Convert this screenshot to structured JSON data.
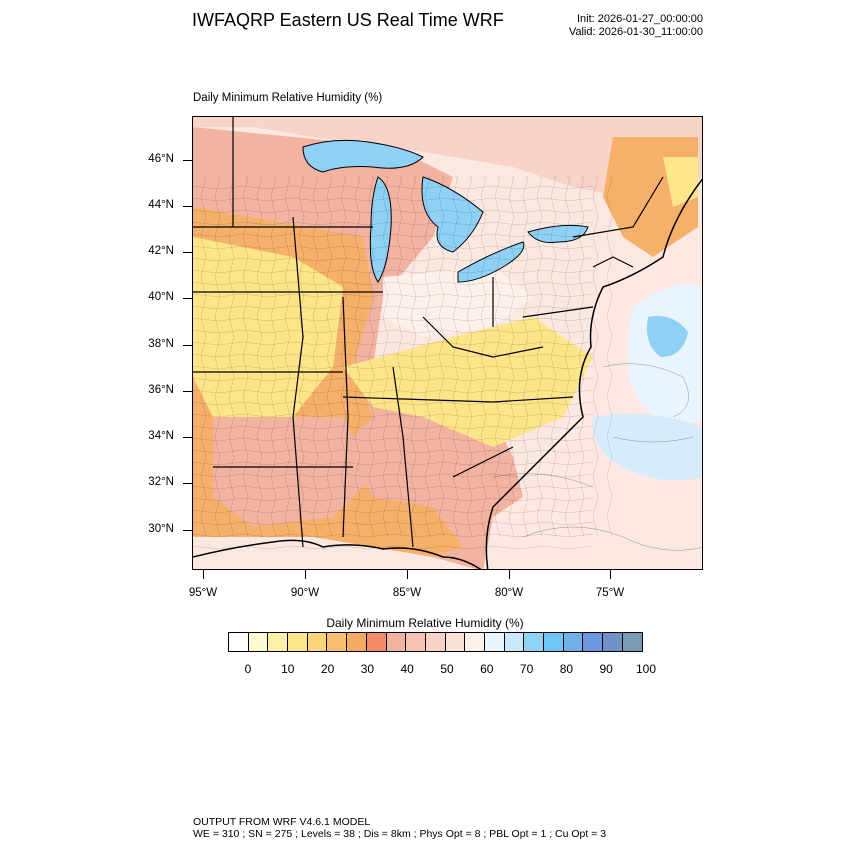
{
  "header": {
    "title": "IWFAQRP Eastern US Real Time WRF",
    "init": "Init: 2026-01-27_00:00:00",
    "valid": "Valid: 2026-01-30_11:00:00"
  },
  "map": {
    "field_label": "Daily Minimum Relative Humidity   (%)",
    "lat_labels": [
      "46°N",
      "44°N",
      "42°N",
      "40°N",
      "38°N",
      "36°N",
      "34°N",
      "32°N",
      "30°N"
    ],
    "lon_labels": [
      "95°W",
      "90°W",
      "85°W",
      "80°W",
      "75°W"
    ],
    "colors": {
      "yellow": "#fde58a",
      "orange": "#f6b06a",
      "salmon": "#f2b3a0",
      "pink": "#f7d3c8",
      "lightpink": "#fbe8e1",
      "white": "#ffffff",
      "lightblue": "#d6ecfa",
      "blue": "#8fd0f5",
      "deepblue": "#6fb0e8"
    }
  },
  "colorbar": {
    "title": "Daily Minimum Relative Humidity  (%)",
    "colors": [
      "#ffffff",
      "#fffbd0",
      "#fff0a8",
      "#fde58a",
      "#fcd47c",
      "#f9c070",
      "#f6ab62",
      "#f58a66",
      "#f2b3a0",
      "#f6c2b3",
      "#f8d2c6",
      "#fbe2d9",
      "#fdf1ec",
      "#eaf4fd",
      "#c8e8fb",
      "#8fd4f7",
      "#6fc6f2",
      "#6fb0e8",
      "#6e97de",
      "#7092c8",
      "#7a9ab8"
    ],
    "labels": [
      "0",
      "10",
      "20",
      "30",
      "40",
      "50",
      "60",
      "70",
      "80",
      "90",
      "100"
    ]
  },
  "footer": {
    "line1": "OUTPUT FROM WRF V4.6.1 MODEL",
    "line2": "WE = 310 ; SN = 275 ; Levels = 38 ; Dis = 8km ; Phys Opt = 8 ; PBL Opt = 1 ; Cu Opt = 3"
  }
}
